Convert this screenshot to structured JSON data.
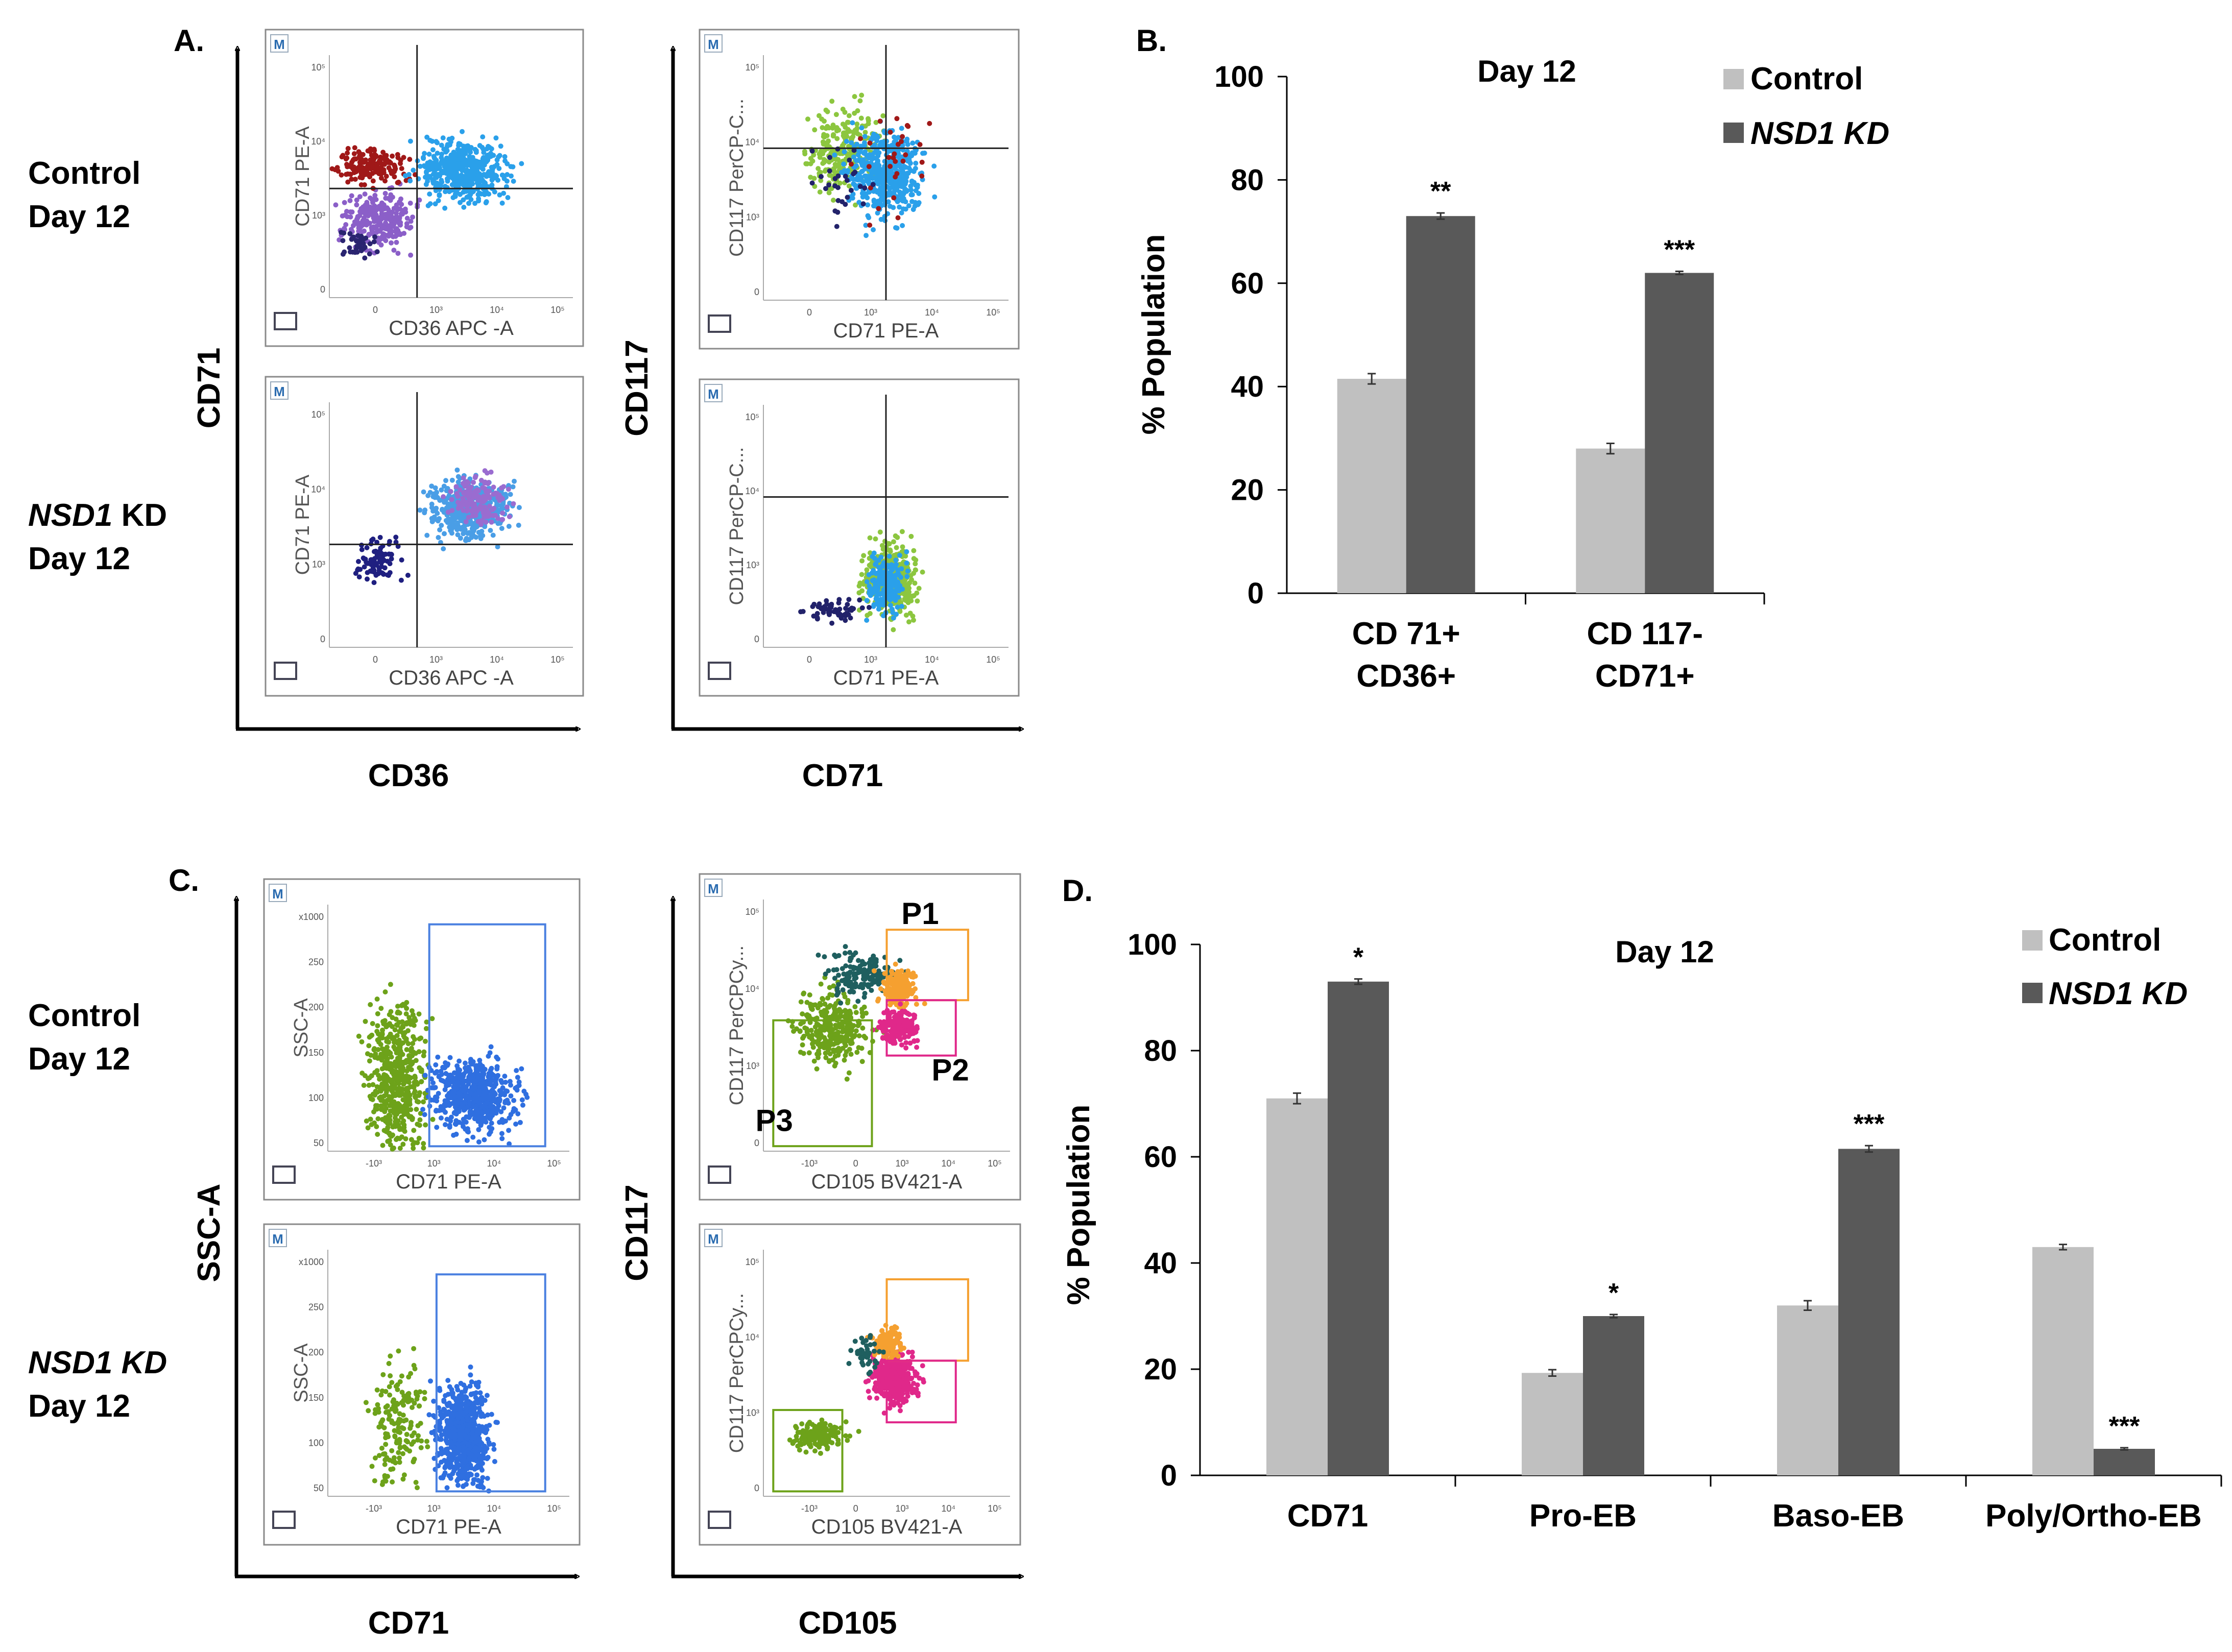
{
  "panels": {
    "A": {
      "label": "A.",
      "rows": [
        {
          "line1": "Control",
          "line2": "Day 12"
        },
        {
          "line1_italic": "NSD1",
          "line1_rest": " KD",
          "line2": "Day 12"
        }
      ],
      "left_y": "CD71",
      "left_x": "CD36",
      "right_y": "CD117",
      "right_x": "CD71",
      "plot_left": {
        "marker": "M",
        "ylab": "CD71 PE-A",
        "xlab": "CD36 APC -A",
        "yticks": [
          "10⁵",
          "10⁴",
          "10³",
          "0"
        ],
        "xticks": [
          "0",
          "10³",
          "10⁴",
          "10⁵"
        ]
      },
      "plot_right": {
        "marker": "M",
        "ylab": "CD117 PerCP-C...",
        "xlab": "CD71 PE-A",
        "yticks": [
          "10⁵",
          "10⁴",
          "10³",
          "0"
        ],
        "xticks": [
          "0",
          "10³",
          "10⁴",
          "10⁵"
        ]
      }
    },
    "C": {
      "label": "C.",
      "rows": [
        {
          "line1": "Control",
          "line2": "Day 12"
        },
        {
          "line1_italic": "NSD1 KD",
          "line2": "Day 12"
        }
      ],
      "left_y": "SSC-A",
      "left_x": "CD71",
      "right_y": "CD117",
      "right_x": "CD105",
      "plot_left": {
        "marker": "M",
        "ylab": "SSC-A",
        "xlab": "CD71 PE-A",
        "yticks": [
          "x1000",
          "250",
          "200",
          "150",
          "100",
          "50"
        ],
        "xticks": [
          "-10³",
          "10³",
          "10⁴",
          "10⁵"
        ]
      },
      "plot_right": {
        "marker": "M",
        "ylab": "CD117 PerCPCy...",
        "xlab": "CD105 BV421-A",
        "gates": [
          "P1",
          "P2",
          "P3"
        ],
        "yticks": [
          "10⁵",
          "10⁴",
          "10³",
          "0"
        ],
        "xticks": [
          "-10³",
          "0",
          "10³",
          "10⁴",
          "10⁵"
        ]
      }
    }
  },
  "chart_data": [
    {
      "panel": "B.",
      "type": "bar",
      "title": "Day 12",
      "ylabel": "% Population",
      "xlabel": "",
      "ylim": [
        0,
        100
      ],
      "yticks": [
        0,
        20,
        40,
        60,
        80,
        100
      ],
      "grid": false,
      "legend_position": "top-right",
      "categories": [
        [
          "CD 71+",
          "CD36+"
        ],
        [
          "CD 117-",
          "CD71+"
        ]
      ],
      "series": [
        {
          "name": "Control",
          "italic": false,
          "color": "#c0c0c0",
          "values": [
            41.5,
            28
          ],
          "errors": [
            1.0,
            1.0
          ]
        },
        {
          "name": "NSD1 KD",
          "italic": true,
          "color": "#595959",
          "values": [
            73,
            62
          ],
          "errors": [
            0.6,
            0.3
          ]
        }
      ],
      "annotations": [
        "**",
        "***"
      ]
    },
    {
      "panel": "D.",
      "type": "bar",
      "title": "Day 12",
      "ylabel": "% Population",
      "xlabel": "",
      "ylim": [
        0,
        100
      ],
      "yticks": [
        0,
        20,
        40,
        60,
        80,
        100
      ],
      "grid": false,
      "legend_position": "top-right",
      "categories": [
        "CD71",
        "Pro-EB",
        "Baso-EB",
        "Poly/Ortho-EB"
      ],
      "series": [
        {
          "name": "Control",
          "italic": false,
          "color": "#c0c0c0",
          "values": [
            71,
            19.3,
            32,
            43
          ],
          "errors": [
            1.0,
            0.6,
            0.9,
            0.5
          ]
        },
        {
          "name": "NSD1 KD",
          "italic": true,
          "color": "#595959",
          "values": [
            93,
            30,
            61.5,
            5
          ],
          "errors": [
            0.5,
            0.3,
            0.6,
            0.2
          ]
        }
      ],
      "annotations": [
        "*",
        "*",
        "***",
        "***"
      ]
    }
  ]
}
